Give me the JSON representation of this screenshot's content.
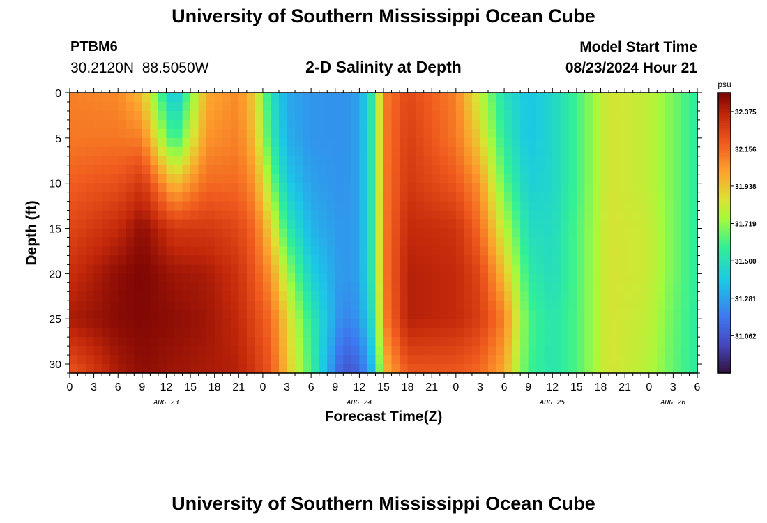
{
  "header": {
    "title": "University of Southern Mississippi Ocean Cube",
    "station_id": "PTBM6",
    "station_coords": "30.2120N  88.5050W",
    "subtitle": "2-D Salinity at Depth",
    "model_start_label": "Model Start Time",
    "model_start_value": "08/23/2024 Hour 21"
  },
  "footer": {
    "title": "University of Southern Mississippi Ocean Cube"
  },
  "chart_data": {
    "type": "heatmap",
    "title": "2-D Salinity at Depth",
    "xlabel": "Forecast Time(Z)",
    "ylabel": "Depth (ft)",
    "x_hours_range": [
      0,
      78
    ],
    "x_tick_step_hours": 3,
    "x_tick_labels": [
      "0",
      "3",
      "6",
      "9",
      "12",
      "15",
      "18",
      "21",
      "0",
      "3",
      "6",
      "9",
      "12",
      "15",
      "18",
      "21",
      "0",
      "3",
      "6",
      "9",
      "12",
      "15",
      "18",
      "21",
      "0",
      "3",
      "6"
    ],
    "day_labels": [
      {
        "label": "AUG 23",
        "hour": 12
      },
      {
        "label": "AUG 24",
        "hour": 36
      },
      {
        "label": "AUG 25",
        "hour": 60
      },
      {
        "label": "AUG 26",
        "hour": 75
      }
    ],
    "y_range_ft": [
      0,
      31
    ],
    "y_ticks": [
      0,
      5,
      10,
      15,
      20,
      25,
      30
    ],
    "y_tick_labels": [
      "0",
      "5",
      "10",
      "15",
      "20",
      "25",
      "30"
    ],
    "colorbar": {
      "unit": "psu",
      "min": 30.843,
      "max": 32.485,
      "tick_values": [
        32.375,
        32.156,
        31.938,
        31.719,
        31.5,
        31.281,
        31.062
      ],
      "tick_labels": [
        "32.375",
        "32.156",
        "31.938",
        "31.719",
        "31.500",
        "31.281",
        "31.062"
      ]
    },
    "field_description": "salinity (psu) vs forecast hour and depth",
    "columns": [
      {
        "hour": 0,
        "s": [
          32.1,
          32.12,
          32.18,
          32.25,
          32.33,
          32.4,
          32.2
        ]
      },
      {
        "hour": 6,
        "s": [
          32.08,
          32.12,
          32.22,
          32.35,
          32.45,
          32.46,
          32.4
        ]
      },
      {
        "hour": 9,
        "s": [
          31.95,
          32.1,
          32.3,
          32.45,
          32.48,
          32.47,
          32.45
        ]
      },
      {
        "hour": 13,
        "s": [
          31.35,
          31.55,
          31.95,
          32.3,
          32.42,
          32.45,
          32.42
        ]
      },
      {
        "hour": 17,
        "s": [
          32.0,
          32.05,
          32.15,
          32.3,
          32.4,
          32.42,
          32.4
        ]
      },
      {
        "hour": 21,
        "s": [
          32.08,
          32.1,
          32.15,
          32.25,
          32.32,
          32.35,
          32.38
        ]
      },
      {
        "hour": 23,
        "s": [
          31.9,
          31.95,
          32.05,
          32.15,
          32.2,
          32.25,
          32.3
        ]
      },
      {
        "hour": 25,
        "s": [
          31.5,
          31.55,
          31.7,
          31.9,
          32.05,
          32.15,
          32.2
        ]
      },
      {
        "hour": 27,
        "s": [
          31.3,
          31.32,
          31.4,
          31.55,
          31.75,
          31.9,
          31.95
        ]
      },
      {
        "hour": 30,
        "s": [
          31.25,
          31.25,
          31.28,
          31.33,
          31.42,
          31.55,
          31.6
        ]
      },
      {
        "hour": 34,
        "s": [
          31.24,
          31.24,
          31.24,
          31.25,
          31.25,
          31.2,
          31.05
        ]
      },
      {
        "hour": 36,
        "s": [
          31.28,
          31.28,
          31.28,
          31.28,
          31.28,
          31.25,
          31.1
        ]
      },
      {
        "hour": 38,
        "s": [
          31.6,
          31.6,
          31.6,
          31.6,
          31.6,
          31.55,
          31.4
        ]
      },
      {
        "hour": 39,
        "s": [
          32.1,
          32.1,
          32.1,
          32.1,
          32.1,
          32.08,
          31.95
        ]
      },
      {
        "hour": 42,
        "s": [
          32.25,
          32.28,
          32.3,
          32.35,
          32.38,
          32.38,
          32.2
        ]
      },
      {
        "hour": 48,
        "s": [
          32.1,
          32.12,
          32.2,
          32.32,
          32.35,
          32.35,
          32.2
        ]
      },
      {
        "hour": 51,
        "s": [
          31.8,
          31.9,
          32.05,
          32.15,
          32.25,
          32.28,
          32.15
        ]
      },
      {
        "hour": 54,
        "s": [
          31.5,
          31.55,
          31.65,
          31.8,
          31.95,
          32.1,
          32.0
        ]
      },
      {
        "hour": 57,
        "s": [
          31.38,
          31.38,
          31.42,
          31.48,
          31.55,
          31.62,
          31.6
        ]
      },
      {
        "hour": 60,
        "s": [
          31.45,
          31.45,
          31.45,
          31.47,
          31.48,
          31.52,
          31.52
        ]
      },
      {
        "hour": 63,
        "s": [
          31.6,
          31.6,
          31.6,
          31.62,
          31.62,
          31.62,
          31.62
        ]
      },
      {
        "hour": 67,
        "s": [
          31.85,
          31.85,
          31.85,
          31.85,
          31.85,
          31.85,
          31.85
        ]
      },
      {
        "hour": 72,
        "s": [
          31.8,
          31.8,
          31.8,
          31.82,
          31.82,
          31.8,
          31.78
        ]
      },
      {
        "hour": 75,
        "s": [
          31.68,
          31.68,
          31.68,
          31.68,
          31.68,
          31.66,
          31.65
        ]
      },
      {
        "hour": 78,
        "s": [
          31.55,
          31.55,
          31.55,
          31.55,
          31.55,
          31.55,
          31.55
        ]
      }
    ],
    "column_depths_ft": [
      0,
      5,
      10,
      15,
      20,
      25,
      31
    ]
  }
}
